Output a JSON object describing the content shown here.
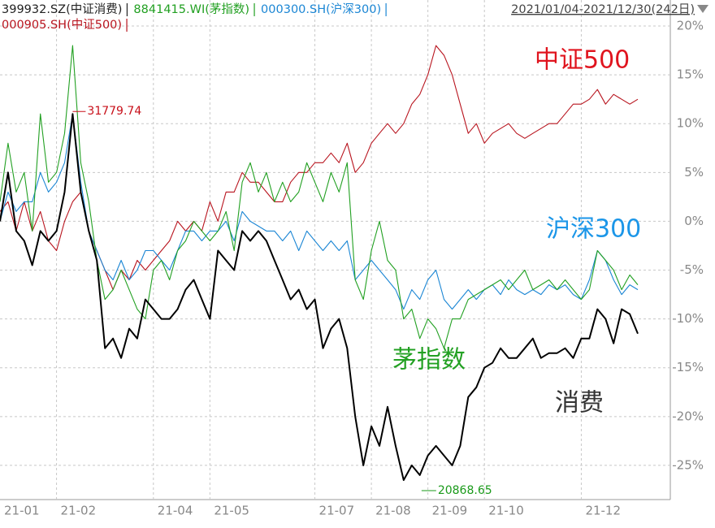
{
  "chart_data": {
    "type": "line",
    "date_range": "2021/01/04-2021/12/30(242日)",
    "categories": [
      "21-01",
      null,
      null,
      null,
      null,
      null,
      null,
      "21-02",
      null,
      null,
      null,
      null,
      null,
      null,
      null,
      null,
      null,
      null,
      null,
      "21-04",
      null,
      null,
      null,
      null,
      null,
      null,
      "21-05",
      null,
      null,
      null,
      null,
      null,
      null,
      null,
      null,
      null,
      null,
      null,
      null,
      "21-07",
      null,
      null,
      null,
      null,
      null,
      null,
      "21-08",
      null,
      null,
      null,
      null,
      null,
      null,
      "21-09",
      null,
      null,
      null,
      null,
      null,
      null,
      "21-10",
      null,
      null,
      null,
      null,
      null,
      null,
      null,
      null,
      null,
      null,
      null,
      "21-12",
      null,
      null,
      null,
      null,
      null,
      null,
      null
    ],
    "ylim": [
      -28.5,
      21
    ],
    "yticks": [
      {
        "value": 20,
        "label": "20%"
      },
      {
        "value": 15,
        "label": "15%"
      },
      {
        "value": 10,
        "label": "10%"
      },
      {
        "value": 5,
        "label": "5%"
      },
      {
        "value": 0,
        "label": "0%"
      },
      {
        "value": -5,
        "label": "-5%"
      },
      {
        "value": -10,
        "label": "-10%"
      },
      {
        "value": -15,
        "label": "-15%"
      },
      {
        "value": -20,
        "label": "-20%"
      },
      {
        "value": -25,
        "label": "-25%"
      }
    ],
    "grid": true,
    "series": [
      {
        "name": "399932.SZ(中证消费)",
        "label": "消费",
        "color": "#000000",
        "label_color": "#333333",
        "max_label": "31779.74",
        "max_label_color": "#c8101a",
        "min_label": "20868.65",
        "min_label_color": "#1a9a1a",
        "values": [
          0,
          5,
          -1,
          -2,
          -4.5,
          -1,
          -2,
          -1,
          3,
          11,
          3,
          -1,
          -4,
          -13,
          -12,
          -14,
          -11,
          -12,
          -8,
          -9,
          -10,
          -10,
          -9,
          -7,
          -6,
          -8,
          -10,
          -3,
          -4,
          -5,
          -1,
          -2,
          -1,
          -2,
          -4,
          -6,
          -8,
          -7,
          -9,
          -8,
          -13,
          -11,
          -10,
          -13,
          -20,
          -25,
          -21,
          -23,
          -19,
          -23,
          -26.5,
          -25,
          -26,
          -24,
          -23,
          -24,
          -25,
          -23,
          -18,
          -17,
          -15,
          -14.5,
          -13,
          -14,
          -14,
          -13,
          -12,
          -14,
          -13.5,
          -13.5,
          -13,
          -14,
          -12,
          -12,
          -9,
          -10,
          -12.5,
          -9,
          -9.5,
          -11.5
        ]
      },
      {
        "name": "8841415.WI(茅指数)",
        "label": "茅指数",
        "color": "#22a022",
        "label_color": "#22a022",
        "values": [
          2,
          8,
          3,
          5,
          -1,
          11,
          4,
          5,
          9,
          18,
          6,
          2,
          -4,
          -8,
          -7,
          -5,
          -7,
          -9,
          -10,
          -5,
          -4,
          -6,
          -3,
          -2,
          0,
          -1,
          -2,
          -1,
          1,
          -3,
          4,
          6,
          3,
          5,
          2,
          4,
          2,
          3,
          6,
          4,
          2,
          5,
          3,
          6,
          -6,
          -8,
          -3,
          0,
          -4,
          -5,
          -10,
          -9,
          -12,
          -10,
          -11,
          -13,
          -10,
          -10,
          -8,
          -7.5,
          -7,
          -6.5,
          -6,
          -7,
          -6,
          -5,
          -7,
          -6.5,
          -6,
          -7,
          -6,
          -7,
          -8,
          -7,
          -3,
          -4,
          -5,
          -7,
          -5.5,
          -6.5
        ]
      },
      {
        "name": "000300.SH(沪深300)",
        "label": "沪深300",
        "color": "#1b86d4",
        "label_color": "#1b96e8",
        "values": [
          0,
          3,
          1,
          2,
          2,
          5,
          3,
          4,
          6,
          11,
          4,
          -1,
          -3,
          -5,
          -6,
          -4,
          -6,
          -5,
          -3,
          -3,
          -4,
          -5,
          -3,
          -1,
          -1,
          -2,
          -1,
          -1,
          0,
          -2,
          1,
          0,
          -0.5,
          -1,
          -1,
          -2,
          -1,
          -3,
          -1,
          -2,
          -3,
          -2,
          -3,
          -2,
          -6,
          -5,
          -4,
          -5,
          -6,
          -7,
          -9,
          -7,
          -8,
          -6,
          -5,
          -8,
          -9,
          -8,
          -7,
          -8,
          -7,
          -6.5,
          -7.5,
          -6,
          -7,
          -7.5,
          -7,
          -7.5,
          -6.5,
          -7,
          -6.5,
          -7.5,
          -8,
          -6,
          -3,
          -4,
          -6,
          -7.5,
          -6.5,
          -7
        ]
      },
      {
        "name": "000905.SH(中证500)",
        "label": "中证500",
        "color": "#b8141e",
        "label_color": "#e0141e",
        "values": [
          1,
          2,
          -1,
          2,
          -1,
          1,
          -2,
          -3,
          0,
          2,
          3,
          -1,
          -3,
          -5,
          -7,
          -5,
          -6,
          -4,
          -5,
          -4,
          -3,
          -2,
          0,
          -1,
          0,
          -1,
          2,
          0,
          3,
          3,
          5,
          4,
          4,
          3,
          2,
          2,
          4,
          5,
          5,
          6,
          6,
          7,
          6,
          8,
          5,
          6,
          8,
          9,
          10,
          9,
          10,
          12,
          13,
          15,
          18,
          17,
          15,
          12,
          9,
          10,
          8,
          9,
          9.5,
          10,
          9,
          8.5,
          9,
          9.5,
          10,
          10,
          11,
          12,
          12,
          12.5,
          13.5,
          12,
          13,
          12.5,
          12,
          12.5
        ]
      }
    ]
  }
}
